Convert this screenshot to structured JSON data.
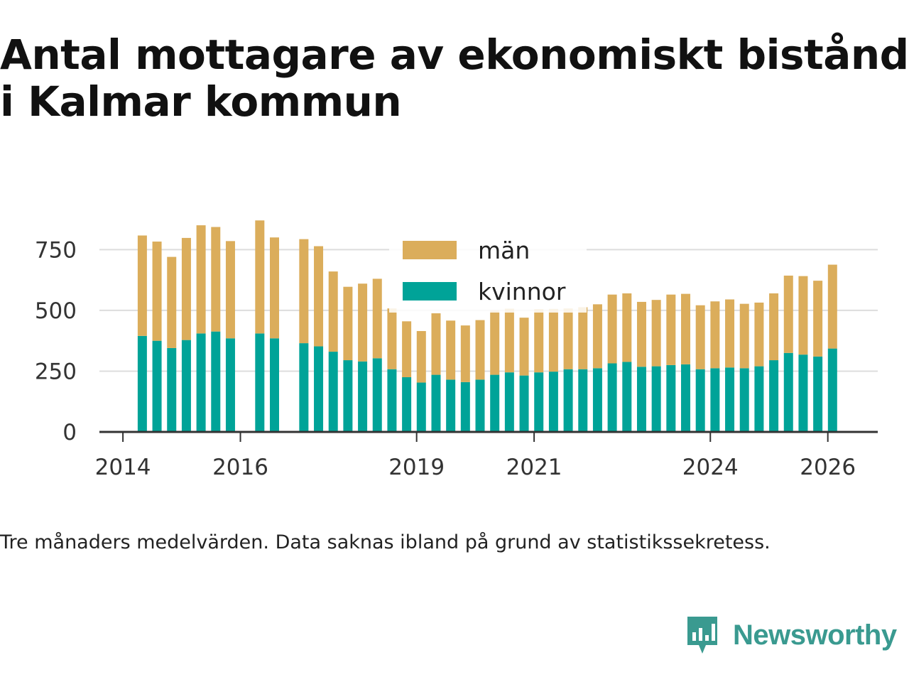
{
  "title_lines": [
    "Antal mottagare av ekonomiskt bistånd",
    "i Kalmar kommun"
  ],
  "note": "Tre månaders medelvärden. Data saknas ibland på grund av statistikssekretess.",
  "brand": {
    "name": "Newsworthy",
    "color": "#3a9a90",
    "icon": "newsworthy-logo-icon"
  },
  "colors": {
    "man": "#dbad5b",
    "kvinnor": "#00a398",
    "grid": "#dddddd",
    "axis": "#333333",
    "text": "#333333"
  },
  "chart_data": {
    "type": "bar",
    "stacked": true,
    "title": "Antal mottagare av ekonomiskt bistånd i Kalmar kommun",
    "xlabel": "",
    "ylabel": "",
    "ylim": [
      0,
      900
    ],
    "xlim": [
      2013.6,
      2026.85
    ],
    "yticks": [
      0,
      250,
      500,
      750
    ],
    "xticks": [
      2014,
      2016,
      2019,
      2021,
      2024,
      2026
    ],
    "grid": true,
    "legend": {
      "position": "top-center",
      "entries": [
        "män",
        "kvinnor"
      ]
    },
    "x": [
      2014.33,
      2014.58,
      2014.83,
      2015.08,
      2015.33,
      2015.58,
      2015.83,
      2016.33,
      2016.58,
      2017.08,
      2017.33,
      2017.58,
      2017.83,
      2018.08,
      2018.33,
      2018.58,
      2018.83,
      2019.08,
      2019.33,
      2019.58,
      2019.83,
      2020.08,
      2020.33,
      2020.58,
      2020.83,
      2021.08,
      2021.33,
      2021.58,
      2021.83,
      2022.08,
      2022.33,
      2022.58,
      2022.83,
      2023.08,
      2023.33,
      2023.58,
      2023.83,
      2024.08,
      2024.33,
      2024.58,
      2024.83,
      2025.08,
      2025.33,
      2025.58,
      2025.83,
      2026.08
    ],
    "series": [
      {
        "name": "kvinnor",
        "values": [
          395,
          375,
          345,
          378,
          405,
          413,
          385,
          405,
          385,
          365,
          352,
          330,
          295,
          290,
          303,
          258,
          225,
          203,
          235,
          215,
          205,
          215,
          235,
          245,
          232,
          245,
          248,
          258,
          258,
          262,
          282,
          288,
          268,
          270,
          275,
          278,
          258,
          262,
          265,
          262,
          270,
          295,
          325,
          318,
          310,
          343
        ]
      },
      {
        "name": "män",
        "values": [
          413,
          408,
          375,
          420,
          445,
          430,
          400,
          465,
          415,
          428,
          412,
          330,
          302,
          320,
          327,
          250,
          230,
          212,
          253,
          243,
          233,
          245,
          265,
          262,
          238,
          260,
          258,
          250,
          255,
          263,
          283,
          282,
          267,
          273,
          290,
          290,
          263,
          275,
          280,
          265,
          262,
          275,
          318,
          323,
          312,
          345
        ]
      }
    ]
  }
}
